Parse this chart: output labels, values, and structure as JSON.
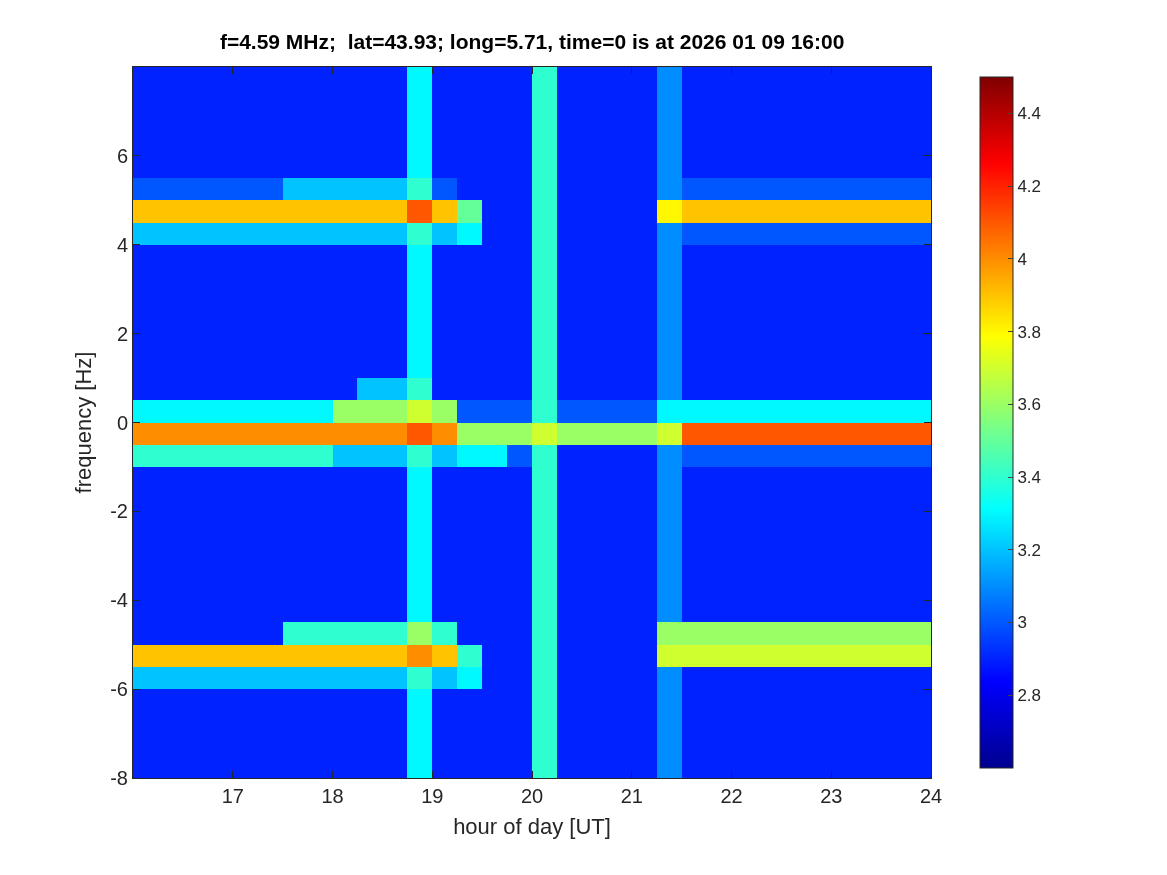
{
  "chart_data": {
    "type": "heatmap",
    "title": "f=4.59 MHz;  lat=43.93; long=5.71, time=0 is at 2026 01 09 16:00",
    "xlabel": "hour of day [UT]",
    "ylabel": "frequency [Hz]",
    "xlim": [
      16,
      24
    ],
    "ylim": [
      -8,
      8
    ],
    "xticks": [
      17,
      18,
      19,
      20,
      21,
      22,
      23,
      24
    ],
    "yticks": [
      -8,
      -6,
      -4,
      -2,
      0,
      2,
      4,
      6
    ],
    "clim": [
      2.6,
      4.5
    ],
    "cticks": [
      2.8,
      3,
      3.2,
      3.4,
      3.6,
      3.8,
      4,
      4.2,
      4.4
    ],
    "cells": [
      [
        2.9,
        2.9,
        2.9,
        2.9,
        2.9,
        2.9,
        2.9,
        2.9,
        2.9,
        2.9,
        2.9,
        3.3,
        2.9,
        2.9,
        2.9,
        2.9,
        3.4,
        2.9,
        2.9,
        2.9,
        2.9,
        3.1,
        2.9,
        2.9,
        2.9,
        2.9,
        2.9,
        2.9,
        2.9,
        2.9,
        2.9,
        2.9
      ],
      [
        2.9,
        2.9,
        2.9,
        2.9,
        2.9,
        2.9,
        2.9,
        2.9,
        2.9,
        2.9,
        2.9,
        3.3,
        2.9,
        2.9,
        2.9,
        2.9,
        3.4,
        2.9,
        2.9,
        2.9,
        2.9,
        3.1,
        2.9,
        2.9,
        2.9,
        2.9,
        2.9,
        2.9,
        2.9,
        2.9,
        2.9,
        2.9
      ],
      [
        2.9,
        2.9,
        2.9,
        2.9,
        2.9,
        2.9,
        2.9,
        2.9,
        2.9,
        2.9,
        2.9,
        3.3,
        2.9,
        2.9,
        2.9,
        2.9,
        3.4,
        2.9,
        2.9,
        2.9,
        2.9,
        3.1,
        2.9,
        2.9,
        2.9,
        2.9,
        2.9,
        2.9,
        2.9,
        2.9,
        2.9,
        2.9
      ],
      [
        2.9,
        2.9,
        2.9,
        2.9,
        2.9,
        2.9,
        2.9,
        2.9,
        2.9,
        2.9,
        2.9,
        3.3,
        2.9,
        2.9,
        2.9,
        2.9,
        3.4,
        2.9,
        2.9,
        2.9,
        2.9,
        3.1,
        2.9,
        2.9,
        2.9,
        2.9,
        2.9,
        2.9,
        2.9,
        2.9,
        2.9,
        2.9
      ],
      [
        2.9,
        2.9,
        2.9,
        2.9,
        2.9,
        2.9,
        2.9,
        2.9,
        2.9,
        2.9,
        2.9,
        3.3,
        2.9,
        2.9,
        2.9,
        2.9,
        3.4,
        2.9,
        2.9,
        2.9,
        2.9,
        3.1,
        2.9,
        2.9,
        2.9,
        2.9,
        2.9,
        2.9,
        2.9,
        2.9,
        2.9,
        2.9
      ],
      [
        3.0,
        3.0,
        3.0,
        3.0,
        3.0,
        3.0,
        3.2,
        3.2,
        3.2,
        3.2,
        3.2,
        3.4,
        3.0,
        2.9,
        2.9,
        2.9,
        3.4,
        2.9,
        2.9,
        2.9,
        2.9,
        3.1,
        3.0,
        3.0,
        3.0,
        3.0,
        3.0,
        3.0,
        3.0,
        3.0,
        3.0,
        3.0
      ],
      [
        3.9,
        3.9,
        3.9,
        3.9,
        3.9,
        3.9,
        3.9,
        3.9,
        3.9,
        3.9,
        3.9,
        4.1,
        3.9,
        3.5,
        2.9,
        2.9,
        3.4,
        2.9,
        2.9,
        2.9,
        2.9,
        3.8,
        3.9,
        3.9,
        3.9,
        3.9,
        3.9,
        3.9,
        3.9,
        3.9,
        3.9,
        3.9
      ],
      [
        3.2,
        3.2,
        3.2,
        3.2,
        3.2,
        3.2,
        3.2,
        3.2,
        3.2,
        3.2,
        3.2,
        3.4,
        3.2,
        3.3,
        2.9,
        2.9,
        3.4,
        2.9,
        2.9,
        2.9,
        2.9,
        3.1,
        3.0,
        3.0,
        3.0,
        3.0,
        3.0,
        3.0,
        3.0,
        3.0,
        3.0,
        3.0
      ],
      [
        2.9,
        2.9,
        2.9,
        2.9,
        2.9,
        2.9,
        2.9,
        2.9,
        2.9,
        2.9,
        2.9,
        3.3,
        2.9,
        2.9,
        2.9,
        2.9,
        3.4,
        2.9,
        2.9,
        2.9,
        2.9,
        3.1,
        2.9,
        2.9,
        2.9,
        2.9,
        2.9,
        2.9,
        2.9,
        2.9,
        2.9,
        2.9
      ],
      [
        2.9,
        2.9,
        2.9,
        2.9,
        2.9,
        2.9,
        2.9,
        2.9,
        2.9,
        2.9,
        2.9,
        3.3,
        2.9,
        2.9,
        2.9,
        2.9,
        3.4,
        2.9,
        2.9,
        2.9,
        2.9,
        3.1,
        2.9,
        2.9,
        2.9,
        2.9,
        2.9,
        2.9,
        2.9,
        2.9,
        2.9,
        2.9
      ],
      [
        2.9,
        2.9,
        2.9,
        2.9,
        2.9,
        2.9,
        2.9,
        2.9,
        2.9,
        2.9,
        2.9,
        3.3,
        2.9,
        2.9,
        2.9,
        2.9,
        3.4,
        2.9,
        2.9,
        2.9,
        2.9,
        3.1,
        2.9,
        2.9,
        2.9,
        2.9,
        2.9,
        2.9,
        2.9,
        2.9,
        2.9,
        2.9
      ],
      [
        2.9,
        2.9,
        2.9,
        2.9,
        2.9,
        2.9,
        2.9,
        2.9,
        2.9,
        2.9,
        2.9,
        3.3,
        2.9,
        2.9,
        2.9,
        2.9,
        3.4,
        2.9,
        2.9,
        2.9,
        2.9,
        3.1,
        2.9,
        2.9,
        2.9,
        2.9,
        2.9,
        2.9,
        2.9,
        2.9,
        2.9,
        2.9
      ],
      [
        2.9,
        2.9,
        2.9,
        2.9,
        2.9,
        2.9,
        2.9,
        2.9,
        2.9,
        2.9,
        2.9,
        3.3,
        2.9,
        2.9,
        2.9,
        2.9,
        3.4,
        2.9,
        2.9,
        2.9,
        2.9,
        3.1,
        2.9,
        2.9,
        2.9,
        2.9,
        2.9,
        2.9,
        2.9,
        2.9,
        2.9,
        2.9
      ],
      [
        2.9,
        2.9,
        2.9,
        2.9,
        2.9,
        2.9,
        2.9,
        2.9,
        2.9,
        2.9,
        2.9,
        3.3,
        2.9,
        2.9,
        2.9,
        2.9,
        3.4,
        2.9,
        2.9,
        2.9,
        2.9,
        3.1,
        2.9,
        2.9,
        2.9,
        2.9,
        2.9,
        2.9,
        2.9,
        2.9,
        2.9,
        2.9
      ],
      [
        2.9,
        2.9,
        2.9,
        2.9,
        2.9,
        2.9,
        2.9,
        2.9,
        2.9,
        3.2,
        3.2,
        3.4,
        2.9,
        2.9,
        2.9,
        2.9,
        3.4,
        2.9,
        2.9,
        2.9,
        2.9,
        3.1,
        2.9,
        2.9,
        2.9,
        2.9,
        2.9,
        2.9,
        2.9,
        2.9,
        2.9,
        2.9
      ],
      [
        3.3,
        3.3,
        3.3,
        3.3,
        3.3,
        3.3,
        3.3,
        3.3,
        3.6,
        3.6,
        3.6,
        3.7,
        3.6,
        3.0,
        3.0,
        3.0,
        3.4,
        3.0,
        3.0,
        3.0,
        3.0,
        3.3,
        3.3,
        3.3,
        3.3,
        3.3,
        3.3,
        3.3,
        3.3,
        3.3,
        3.3,
        3.3
      ],
      [
        4.0,
        4.0,
        4.0,
        4.0,
        4.0,
        4.0,
        4.0,
        4.0,
        4.0,
        4.0,
        4.0,
        4.1,
        4.0,
        3.6,
        3.6,
        3.6,
        3.7,
        3.6,
        3.6,
        3.6,
        3.6,
        3.7,
        4.1,
        4.1,
        4.1,
        4.1,
        4.1,
        4.1,
        4.1,
        4.1,
        4.1,
        4.1
      ],
      [
        3.4,
        3.4,
        3.4,
        3.4,
        3.4,
        3.4,
        3.4,
        3.4,
        3.2,
        3.2,
        3.2,
        3.4,
        3.2,
        3.3,
        3.3,
        3.0,
        3.4,
        2.9,
        2.9,
        2.9,
        2.9,
        3.1,
        3.0,
        3.0,
        3.0,
        3.0,
        3.0,
        3.0,
        3.0,
        3.0,
        3.0,
        3.0
      ],
      [
        2.9,
        2.9,
        2.9,
        2.9,
        2.9,
        2.9,
        2.9,
        2.9,
        2.9,
        2.9,
        2.9,
        3.3,
        2.9,
        2.9,
        2.9,
        2.9,
        3.4,
        2.9,
        2.9,
        2.9,
        2.9,
        3.1,
        2.9,
        2.9,
        2.9,
        2.9,
        2.9,
        2.9,
        2.9,
        2.9,
        2.9,
        2.9
      ],
      [
        2.9,
        2.9,
        2.9,
        2.9,
        2.9,
        2.9,
        2.9,
        2.9,
        2.9,
        2.9,
        2.9,
        3.3,
        2.9,
        2.9,
        2.9,
        2.9,
        3.4,
        2.9,
        2.9,
        2.9,
        2.9,
        3.1,
        2.9,
        2.9,
        2.9,
        2.9,
        2.9,
        2.9,
        2.9,
        2.9,
        2.9,
        2.9
      ],
      [
        2.9,
        2.9,
        2.9,
        2.9,
        2.9,
        2.9,
        2.9,
        2.9,
        2.9,
        2.9,
        2.9,
        3.3,
        2.9,
        2.9,
        2.9,
        2.9,
        3.4,
        2.9,
        2.9,
        2.9,
        2.9,
        3.1,
        2.9,
        2.9,
        2.9,
        2.9,
        2.9,
        2.9,
        2.9,
        2.9,
        2.9,
        2.9
      ],
      [
        2.9,
        2.9,
        2.9,
        2.9,
        2.9,
        2.9,
        2.9,
        2.9,
        2.9,
        2.9,
        2.9,
        3.3,
        2.9,
        2.9,
        2.9,
        2.9,
        3.4,
        2.9,
        2.9,
        2.9,
        2.9,
        3.1,
        2.9,
        2.9,
        2.9,
        2.9,
        2.9,
        2.9,
        2.9,
        2.9,
        2.9,
        2.9
      ],
      [
        2.9,
        2.9,
        2.9,
        2.9,
        2.9,
        2.9,
        2.9,
        2.9,
        2.9,
        2.9,
        2.9,
        3.3,
        2.9,
        2.9,
        2.9,
        2.9,
        3.4,
        2.9,
        2.9,
        2.9,
        2.9,
        3.1,
        2.9,
        2.9,
        2.9,
        2.9,
        2.9,
        2.9,
        2.9,
        2.9,
        2.9,
        2.9
      ],
      [
        2.9,
        2.9,
        2.9,
        2.9,
        2.9,
        2.9,
        2.9,
        2.9,
        2.9,
        2.9,
        2.9,
        3.3,
        2.9,
        2.9,
        2.9,
        2.9,
        3.4,
        2.9,
        2.9,
        2.9,
        2.9,
        3.1,
        2.9,
        2.9,
        2.9,
        2.9,
        2.9,
        2.9,
        2.9,
        2.9,
        2.9,
        2.9
      ],
      [
        2.9,
        2.9,
        2.9,
        2.9,
        2.9,
        2.9,
        2.9,
        2.9,
        2.9,
        2.9,
        2.9,
        3.3,
        2.9,
        2.9,
        2.9,
        2.9,
        3.4,
        2.9,
        2.9,
        2.9,
        2.9,
        3.1,
        2.9,
        2.9,
        2.9,
        2.9,
        2.9,
        2.9,
        2.9,
        2.9,
        2.9,
        2.9
      ],
      [
        2.9,
        2.9,
        2.9,
        2.9,
        2.9,
        2.9,
        3.4,
        3.4,
        3.4,
        3.4,
        3.4,
        3.6,
        3.4,
        2.9,
        2.9,
        2.9,
        3.4,
        2.9,
        2.9,
        2.9,
        2.9,
        3.6,
        3.6,
        3.6,
        3.6,
        3.6,
        3.6,
        3.6,
        3.6,
        3.6,
        3.6,
        3.6
      ],
      [
        3.9,
        3.9,
        3.9,
        3.9,
        3.9,
        3.9,
        3.9,
        3.9,
        3.9,
        3.9,
        3.9,
        4.0,
        3.9,
        3.4,
        2.9,
        2.9,
        3.4,
        2.9,
        2.9,
        2.9,
        2.9,
        3.7,
        3.7,
        3.7,
        3.7,
        3.7,
        3.7,
        3.7,
        3.7,
        3.7,
        3.7,
        3.7
      ],
      [
        3.2,
        3.2,
        3.2,
        3.2,
        3.2,
        3.2,
        3.2,
        3.2,
        3.2,
        3.2,
        3.2,
        3.4,
        3.2,
        3.3,
        2.9,
        2.9,
        3.4,
        2.9,
        2.9,
        2.9,
        2.9,
        3.1,
        2.9,
        2.9,
        2.9,
        2.9,
        2.9,
        2.9,
        2.9,
        2.9,
        2.9,
        2.9
      ],
      [
        2.9,
        2.9,
        2.9,
        2.9,
        2.9,
        2.9,
        2.9,
        2.9,
        2.9,
        2.9,
        2.9,
        3.3,
        2.9,
        2.9,
        2.9,
        2.9,
        3.4,
        2.9,
        2.9,
        2.9,
        2.9,
        3.1,
        2.9,
        2.9,
        2.9,
        2.9,
        2.9,
        2.9,
        2.9,
        2.9,
        2.9,
        2.9
      ],
      [
        2.9,
        2.9,
        2.9,
        2.9,
        2.9,
        2.9,
        2.9,
        2.9,
        2.9,
        2.9,
        2.9,
        3.3,
        2.9,
        2.9,
        2.9,
        2.9,
        3.4,
        2.9,
        2.9,
        2.9,
        2.9,
        3.1,
        2.9,
        2.9,
        2.9,
        2.9,
        2.9,
        2.9,
        2.9,
        2.9,
        2.9,
        2.9
      ],
      [
        2.9,
        2.9,
        2.9,
        2.9,
        2.9,
        2.9,
        2.9,
        2.9,
        2.9,
        2.9,
        2.9,
        3.3,
        2.9,
        2.9,
        2.9,
        2.9,
        3.4,
        2.9,
        2.9,
        2.9,
        2.9,
        3.1,
        2.9,
        2.9,
        2.9,
        2.9,
        2.9,
        2.9,
        2.9,
        2.9,
        2.9,
        2.9
      ],
      [
        2.9,
        2.9,
        2.9,
        2.9,
        2.9,
        2.9,
        2.9,
        2.9,
        2.9,
        2.9,
        2.9,
        3.3,
        2.9,
        2.9,
        2.9,
        2.9,
        3.4,
        2.9,
        2.9,
        2.9,
        2.9,
        3.1,
        2.9,
        2.9,
        2.9,
        2.9,
        2.9,
        2.9,
        2.9,
        2.9,
        2.9,
        2.9
      ]
    ]
  }
}
